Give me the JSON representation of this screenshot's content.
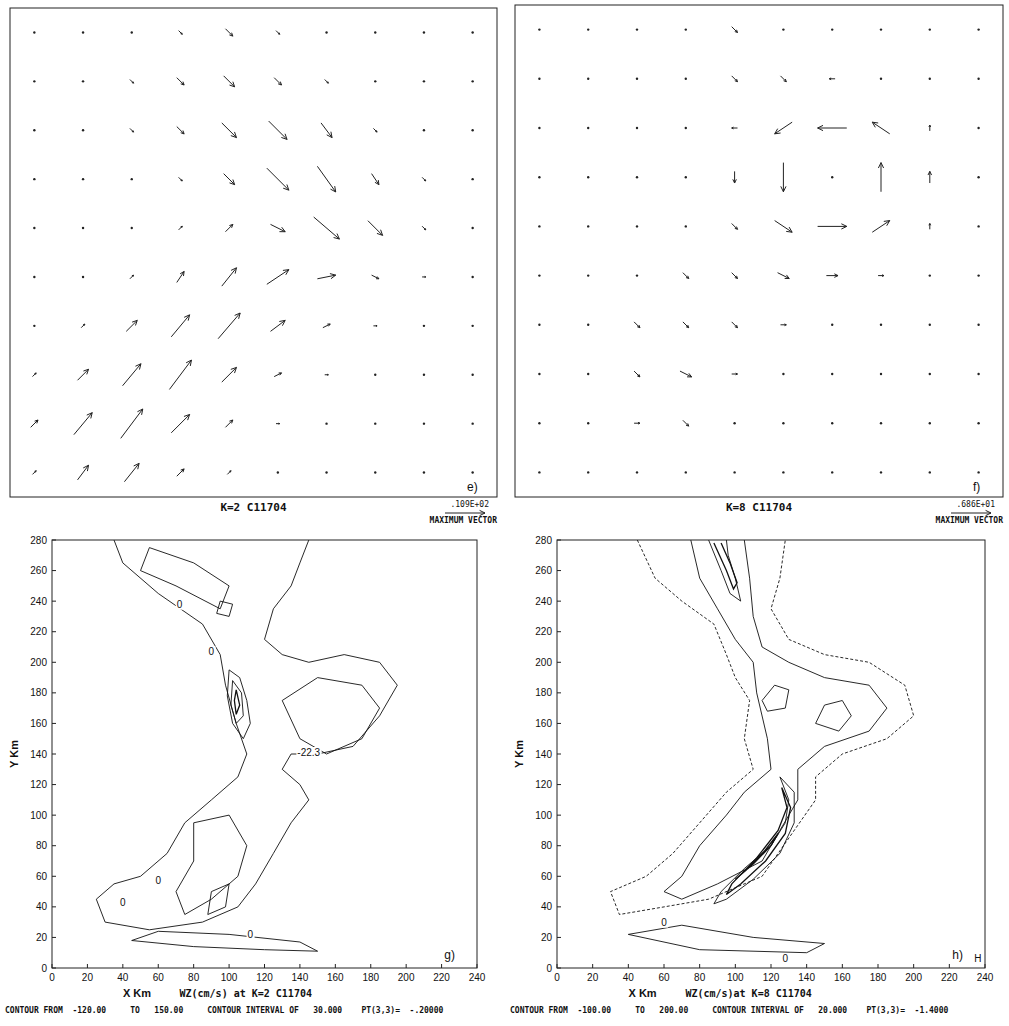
{
  "chart_data": [
    {
      "type": "quiver",
      "title": "K=2 C11704",
      "panel_label": "e)",
      "max_vector": {
        "value": 10.9,
        "label": ".109E+02"
      },
      "max_vector_caption": "MAXIMUM VECTOR",
      "u": [
        [
          0,
          0,
          0,
          1,
          2,
          1,
          0,
          0,
          0,
          0
        ],
        [
          0,
          0,
          1,
          2,
          3,
          2,
          1,
          0,
          0,
          0
        ],
        [
          0,
          0,
          1,
          2,
          4,
          5,
          3,
          1,
          0,
          0
        ],
        [
          0,
          0,
          0,
          1,
          3,
          6,
          5,
          2,
          1,
          0
        ],
        [
          0,
          0,
          0,
          1,
          2,
          4,
          7,
          4,
          1,
          0
        ],
        [
          0,
          0,
          1,
          2,
          4,
          6,
          5,
          2,
          1,
          0
        ],
        [
          0,
          1,
          3,
          5,
          6,
          4,
          2,
          1,
          0,
          0
        ],
        [
          1,
          3,
          5,
          6,
          4,
          2,
          1,
          0,
          0,
          0
        ],
        [
          2,
          5,
          6,
          5,
          2,
          1,
          0,
          0,
          0,
          0
        ],
        [
          1,
          3,
          4,
          2,
          1,
          0,
          0,
          0,
          0,
          0
        ]
      ],
      "v": [
        [
          0,
          0,
          0,
          -1,
          -2,
          -1,
          0,
          0,
          0,
          0
        ],
        [
          0,
          0,
          -1,
          -2,
          -3,
          -2,
          -1,
          0,
          0,
          0
        ],
        [
          0,
          0,
          -1,
          -2,
          -4,
          -5,
          -4,
          -1,
          0,
          0
        ],
        [
          0,
          0,
          0,
          -1,
          -3,
          -6,
          -7,
          -3,
          -1,
          0
        ],
        [
          0,
          0,
          0,
          1,
          2,
          -2,
          -6,
          -4,
          -1,
          0
        ],
        [
          0,
          0,
          1,
          3,
          5,
          4,
          1,
          -1,
          0,
          0
        ],
        [
          0,
          1,
          3,
          6,
          7,
          3,
          1,
          0,
          0,
          0
        ],
        [
          1,
          3,
          6,
          8,
          4,
          1,
          0,
          0,
          0,
          0
        ],
        [
          2,
          6,
          8,
          5,
          2,
          0,
          0,
          0,
          0,
          0
        ],
        [
          1,
          4,
          5,
          2,
          1,
          0,
          0,
          0,
          0,
          0
        ]
      ]
    },
    {
      "type": "quiver",
      "title": "K=8 C11704",
      "panel_label": "f)",
      "max_vector": {
        "value": 6.86,
        "label": ".686E+01"
      },
      "max_vector_caption": "MAXIMUM VECTOR",
      "u": [
        [
          0,
          0,
          0,
          0,
          1,
          0,
          0,
          0,
          0,
          0
        ],
        [
          0,
          0,
          0,
          0,
          1,
          1,
          -1,
          0,
          0,
          0
        ],
        [
          0,
          0,
          0,
          0,
          -1,
          -3,
          -5,
          -3,
          0,
          0
        ],
        [
          0,
          0,
          0,
          0,
          0,
          0,
          0,
          0,
          0,
          0
        ],
        [
          0,
          0,
          0,
          0,
          1,
          3,
          5,
          3,
          0,
          0
        ],
        [
          0,
          0,
          0,
          1,
          1,
          2,
          2,
          1,
          0,
          0
        ],
        [
          0,
          0,
          1,
          1,
          1,
          1,
          0,
          0,
          0,
          0
        ],
        [
          0,
          0,
          1,
          2,
          1,
          0,
          0,
          0,
          0,
          0
        ],
        [
          0,
          0,
          1,
          1,
          0,
          0,
          0,
          0,
          0,
          0
        ],
        [
          0,
          0,
          0,
          0,
          0,
          0,
          0,
          0,
          0,
          0
        ]
      ],
      "v": [
        [
          0,
          0,
          0,
          0,
          -1,
          0,
          0,
          0,
          0,
          0
        ],
        [
          0,
          0,
          0,
          0,
          -1,
          -1,
          0,
          0,
          0,
          0
        ],
        [
          0,
          0,
          0,
          0,
          0,
          -2,
          0,
          2,
          1,
          0
        ],
        [
          0,
          0,
          0,
          0,
          -2,
          -5,
          0,
          5,
          2,
          0
        ],
        [
          0,
          0,
          0,
          0,
          -1,
          -2,
          0,
          2,
          1,
          0
        ],
        [
          0,
          0,
          0,
          -1,
          -1,
          -1,
          0,
          0,
          0,
          0
        ],
        [
          0,
          0,
          -1,
          -1,
          -1,
          0,
          0,
          0,
          0,
          0
        ],
        [
          0,
          0,
          -1,
          -1,
          0,
          0,
          0,
          0,
          0,
          0
        ],
        [
          0,
          0,
          0,
          -1,
          0,
          0,
          0,
          0,
          0,
          0
        ],
        [
          0,
          0,
          0,
          0,
          0,
          0,
          0,
          0,
          0,
          0
        ]
      ]
    },
    {
      "type": "contour",
      "title": "WZ(cm/s) at K=2 C11704",
      "xlabel": "X Km",
      "ylabel": "Y Km",
      "panel_label": "g)",
      "note": "CONTOUR FROM  -120.00     TO   150.00     CONTOUR INTERVAL OF   30.000    PT(3,3)=  -.20000",
      "xlim": [
        0,
        240
      ],
      "ylim": [
        0,
        280
      ],
      "xticks": [
        0,
        20,
        40,
        60,
        80,
        100,
        120,
        140,
        160,
        180,
        200,
        220,
        240
      ],
      "yticks": [
        0,
        20,
        40,
        60,
        80,
        100,
        120,
        140,
        160,
        180,
        200,
        220,
        240,
        260,
        280
      ],
      "contours": [
        {
          "level": 0,
          "x": [
            35,
            40,
            60,
            85,
            95,
            98,
            104,
            110,
            105,
            90,
            75,
            65,
            50,
            35,
            25,
            30,
            55,
            85,
            105,
            115,
            125,
            135,
            145,
            140,
            130,
            135,
            150,
            170,
            185,
            195,
            185,
            165,
            145,
            130,
            120,
            125,
            135,
            140,
            145
          ],
          "y": [
            280,
            265,
            245,
            225,
            205,
            185,
            160,
            140,
            125,
            110,
            95,
            75,
            60,
            55,
            45,
            30,
            25,
            30,
            40,
            55,
            75,
            95,
            110,
            120,
            130,
            140,
            140,
            145,
            165,
            185,
            200,
            205,
            200,
            205,
            215,
            235,
            250,
            265,
            280
          ]
        },
        {
          "level": 0,
          "x": [
            45,
            80,
            120,
            150,
            140,
            100,
            60,
            45
          ],
          "y": [
            18,
            14,
            12,
            11,
            17,
            22,
            24,
            18
          ]
        },
        {
          "level": 30,
          "x": [
            100,
            106,
            110,
            112,
            108,
            102,
            99,
            100
          ],
          "y": [
            195,
            190,
            175,
            160,
            150,
            160,
            178,
            195
          ]
        },
        {
          "level": 60,
          "x": [
            102,
            107,
            108,
            104,
            101,
            102
          ],
          "y": [
            188,
            180,
            165,
            160,
            172,
            188
          ]
        },
        {
          "level": 90,
          "x": [
            104,
            106,
            104,
            103,
            104
          ],
          "y": [
            182,
            172,
            166,
            175,
            182
          ]
        },
        {
          "level": 30,
          "x": [
            130,
            150,
            175,
            185,
            175,
            155,
            140,
            130
          ],
          "y": [
            175,
            190,
            185,
            170,
            150,
            140,
            150,
            175
          ]
        },
        {
          "level": 30,
          "x": [
            80,
            100,
            110,
            105,
            90,
            75,
            70,
            80,
            80
          ],
          "y": [
            95,
            100,
            80,
            60,
            45,
            35,
            50,
            70,
            95
          ]
        },
        {
          "level": 60,
          "x": [
            90,
            100,
            98,
            88,
            90
          ],
          "y": [
            50,
            55,
            40,
            35,
            50
          ]
        },
        {
          "level": 30,
          "x": [
            50,
            70,
            95,
            100,
            80,
            55,
            50
          ],
          "y": [
            260,
            250,
            235,
            250,
            265,
            275,
            260
          ]
        },
        {
          "level": 60,
          "x": [
            95,
            102,
            100,
            93,
            95
          ],
          "y": [
            240,
            238,
            230,
            232,
            240
          ]
        }
      ],
      "annotations": [
        {
          "x": 72,
          "y": 238,
          "text": "0"
        },
        {
          "x": 90,
          "y": 207,
          "text": "0"
        },
        {
          "x": 40,
          "y": 43,
          "text": "0"
        },
        {
          "x": 112,
          "y": 22,
          "text": "0"
        },
        {
          "x": 60,
          "y": 57,
          "text": "0"
        },
        {
          "x": 145,
          "y": 141,
          "text": "-22.3"
        }
      ]
    },
    {
      "type": "contour",
      "title": "WZ(cm/s)at K=8 C11704",
      "xlabel": "X Km",
      "ylabel": "Y Km",
      "panel_label": "h)",
      "note": "CONTOUR FROM  -100.00     TO   200.00     CONTOUR INTERVAL OF   20.000    PT(3,3)=  -1.4000",
      "xlim": [
        0,
        240
      ],
      "ylim": [
        0,
        280
      ],
      "xticks": [
        0,
        20,
        40,
        60,
        80,
        100,
        120,
        140,
        160,
        180,
        200,
        220,
        240
      ],
      "yticks": [
        0,
        20,
        40,
        60,
        80,
        100,
        120,
        140,
        160,
        180,
        200,
        220,
        240,
        260,
        280
      ],
      "contours": [
        {
          "level": -20,
          "x": [
            45,
            55,
            70,
            88,
            95,
            100,
            108,
            105,
            110,
            95,
            80,
            65,
            50,
            30,
            35,
            60,
            85,
            115,
            130,
            145,
            145,
            160,
            185,
            200,
            195,
            175,
            150,
            130,
            120,
            125,
            128
          ],
          "y": [
            280,
            255,
            240,
            225,
            205,
            190,
            175,
            150,
            130,
            115,
            95,
            75,
            60,
            50,
            35,
            40,
            45,
            60,
            85,
            110,
            125,
            140,
            150,
            165,
            185,
            200,
            205,
            215,
            235,
            255,
            280
          ]
        },
        {
          "level": 0,
          "x": [
            75,
            80,
            90,
            100,
            110,
            112,
            118,
            120,
            105,
            95,
            80,
            70,
            60,
            70,
            90,
            115,
            125,
            135,
            135,
            150,
            175,
            185,
            175,
            150,
            130,
            115,
            110,
            108,
            105
          ],
          "y": [
            280,
            255,
            235,
            215,
            200,
            180,
            150,
            130,
            115,
            100,
            80,
            60,
            50,
            45,
            55,
            70,
            90,
            110,
            130,
            145,
            155,
            170,
            185,
            190,
            200,
            210,
            230,
            255,
            280
          ]
        },
        {
          "level": 0,
          "x": [
            40,
            80,
            140,
            150,
            110,
            70,
            40
          ],
          "y": [
            22,
            12,
            10,
            16,
            20,
            28,
            22
          ]
        },
        {
          "level": 40,
          "x": [
            85,
            92,
            97,
            103,
            100,
            96,
            95
          ],
          "y": [
            280,
            260,
            245,
            240,
            255,
            270,
            280
          ]
        },
        {
          "level": 80,
          "x": [
            88,
            95,
            99,
            101,
            97,
            92
          ],
          "y": [
            278,
            260,
            248,
            252,
            265,
            278
          ]
        },
        {
          "level": 40,
          "x": [
            125,
            130,
            128,
            120,
            105,
            92,
            88,
            95,
            110,
            125,
            133,
            133,
            125
          ],
          "y": [
            125,
            110,
            95,
            80,
            65,
            50,
            42,
            45,
            58,
            75,
            95,
            115,
            125
          ]
        },
        {
          "level": 80,
          "x": [
            126,
            129,
            124,
            112,
            98,
            95,
            103,
            117,
            128,
            131,
            126
          ],
          "y": [
            118,
            105,
            90,
            72,
            55,
            48,
            55,
            70,
            88,
            105,
            118
          ]
        },
        {
          "level": 120,
          "x": [
            100,
            110,
            120,
            124,
            116,
            106,
            100
          ],
          "y": [
            58,
            68,
            80,
            88,
            76,
            64,
            58
          ]
        },
        {
          "level": 40,
          "x": [
            145,
            150,
            160,
            165,
            158,
            145
          ],
          "y": [
            160,
            172,
            175,
            165,
            155,
            160
          ]
        },
        {
          "level": 40,
          "x": [
            115,
            122,
            130,
            128,
            118,
            115
          ],
          "y": [
            175,
            185,
            182,
            170,
            168,
            175
          ]
        }
      ],
      "annotations": [
        {
          "x": 60,
          "y": 30,
          "text": "0"
        },
        {
          "x": 128,
          "y": 6,
          "text": "0"
        },
        {
          "x": 236,
          "y": 6,
          "text": "H"
        }
      ]
    }
  ]
}
